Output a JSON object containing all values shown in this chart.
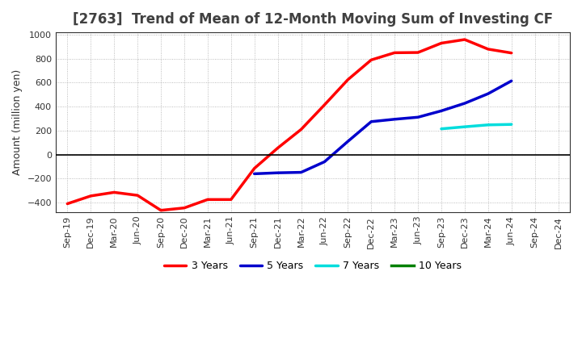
{
  "title": "[2763]  Trend of Mean of 12-Month Moving Sum of Investing CF",
  "ylabel": "Amount (million yen)",
  "bg_color": "#ffffff",
  "grid_color": "#aaaaaa",
  "x_labels": [
    "Sep-19",
    "Dec-19",
    "Mar-20",
    "Jun-20",
    "Sep-20",
    "Dec-20",
    "Mar-21",
    "Jun-21",
    "Sep-21",
    "Dec-21",
    "Mar-22",
    "Jun-22",
    "Sep-22",
    "Dec-22",
    "Mar-23",
    "Jun-23",
    "Sep-23",
    "Dec-23",
    "Mar-24",
    "Jun-24",
    "Sep-24",
    "Dec-24"
  ],
  "series": [
    {
      "label": "3 Years",
      "color": "#ff0000",
      "xi": [
        0,
        1,
        2,
        3,
        4,
        5,
        6,
        7,
        8,
        9,
        10,
        11,
        12,
        13,
        14,
        15,
        16,
        17,
        18,
        19
      ],
      "values": [
        -410,
        -345,
        -315,
        -340,
        -465,
        -445,
        -375,
        -375,
        -115,
        55,
        210,
        415,
        625,
        790,
        850,
        852,
        930,
        960,
        880,
        848
      ]
    },
    {
      "label": "5 Years",
      "color": "#0000cc",
      "xi": [
        8,
        9,
        10,
        11,
        12,
        13,
        14,
        15,
        16,
        17,
        18,
        19
      ],
      "values": [
        -160,
        -152,
        -148,
        -60,
        110,
        275,
        295,
        312,
        365,
        428,
        508,
        615
      ]
    },
    {
      "label": "7 Years",
      "color": "#00dddd",
      "xi": [
        16,
        17,
        18,
        19
      ],
      "values": [
        215,
        232,
        248,
        252
      ]
    },
    {
      "label": "10 Years",
      "color": "#008000",
      "xi": [],
      "values": []
    }
  ],
  "ylim": [
    -480,
    1020
  ],
  "yticks": [
    -400,
    -200,
    0,
    200,
    400,
    600,
    800,
    1000
  ],
  "title_color": "#404040",
  "title_fontsize": 12,
  "axis_fontsize": 8,
  "ylabel_fontsize": 9,
  "linewidth": 2.5,
  "legend_fontsize": 9
}
